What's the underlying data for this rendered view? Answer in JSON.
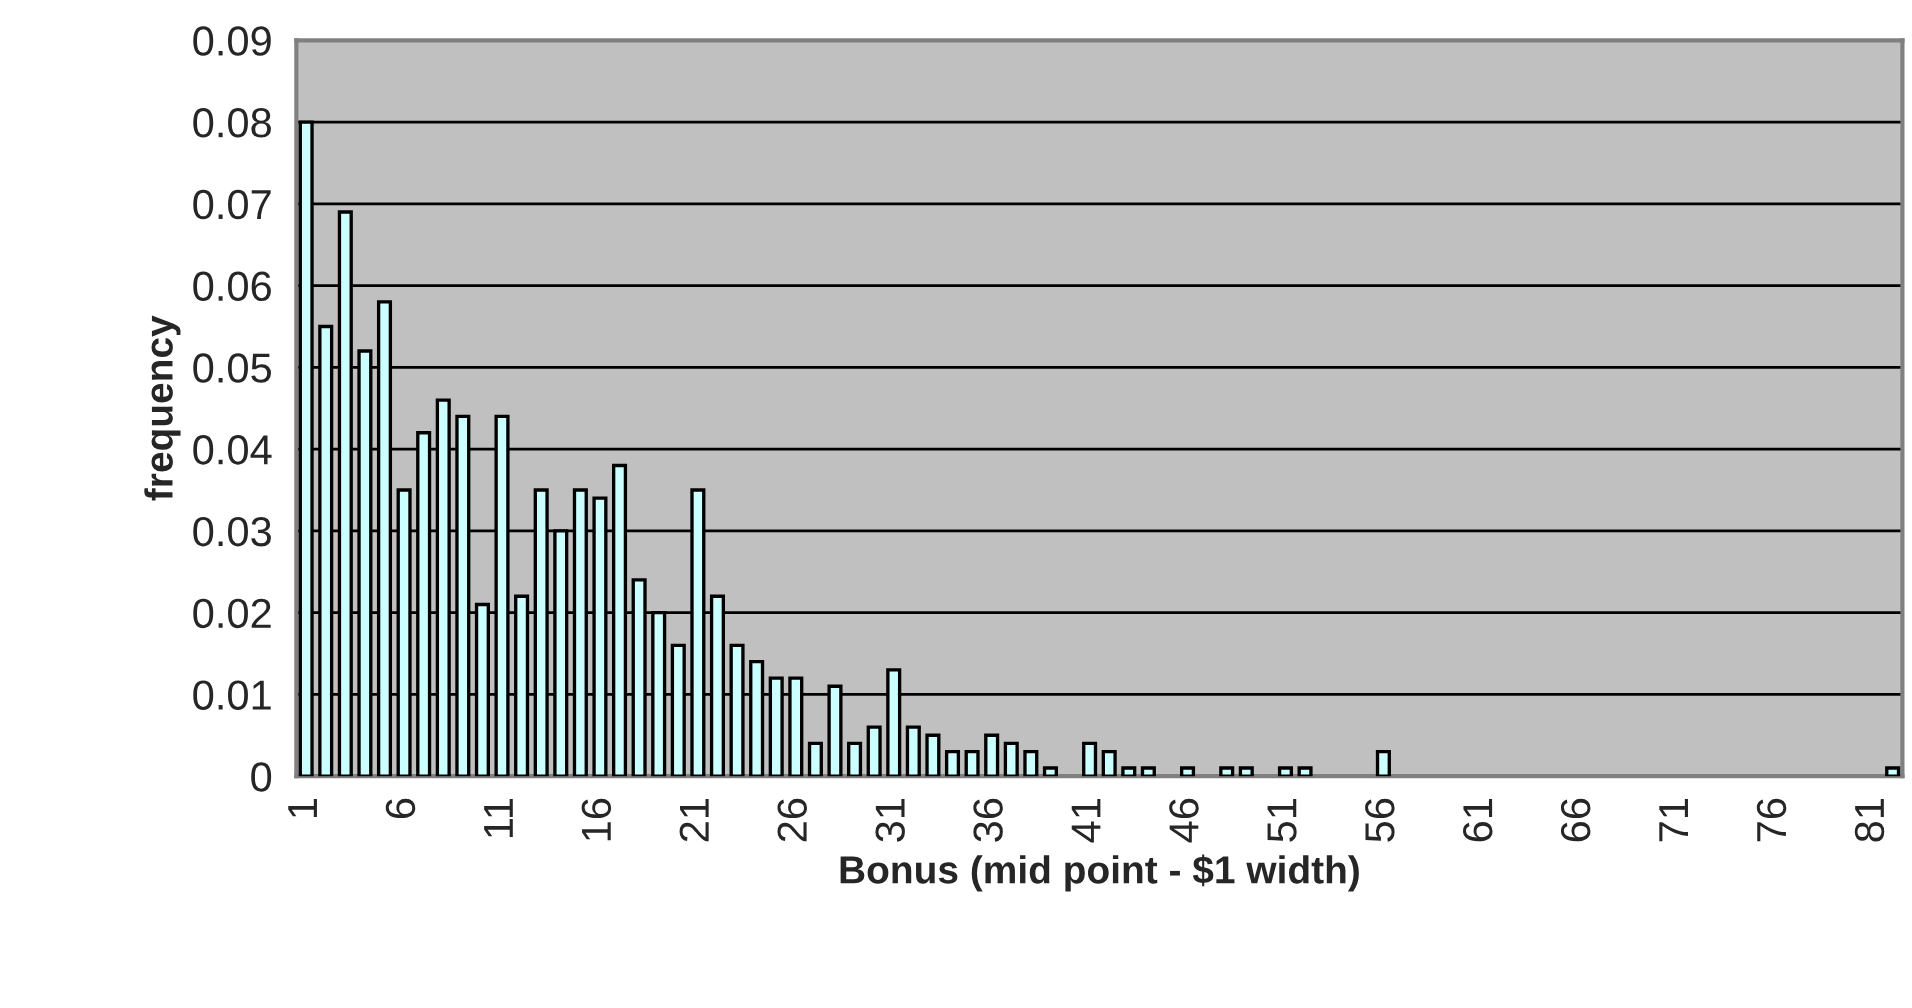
{
  "chart_data": {
    "type": "bar",
    "xlabel": "Bonus (mid point - $1 width)",
    "ylabel": "frequency",
    "categories": [
      "1",
      null,
      null,
      null,
      null,
      "6",
      null,
      null,
      null,
      null,
      "11",
      null,
      null,
      null,
      null,
      "16",
      null,
      null,
      null,
      null,
      "21",
      null,
      null,
      null,
      null,
      "26",
      null,
      null,
      null,
      null,
      "31",
      null,
      null,
      null,
      null,
      "36",
      null,
      null,
      null,
      null,
      "41",
      null,
      null,
      null,
      null,
      "46",
      null,
      null,
      null,
      null,
      "51",
      null,
      null,
      null,
      null,
      "56",
      null,
      null,
      null,
      null,
      "61",
      null,
      null,
      null,
      null,
      "66",
      null,
      null,
      null,
      null,
      "71",
      null,
      null,
      null,
      null,
      "76",
      null,
      null,
      null,
      null,
      "81",
      null
    ],
    "values": [
      0.08,
      0.055,
      0.069,
      0.052,
      0.058,
      0.035,
      0.042,
      0.046,
      0.044,
      0.021,
      0.044,
      0.022,
      0.035,
      0.03,
      0.035,
      0.034,
      0.038,
      0.024,
      0.02,
      0.016,
      0.035,
      0.022,
      0.016,
      0.014,
      0.012,
      0.012,
      0.004,
      0.011,
      0.004,
      0.006,
      0.013,
      0.006,
      0.005,
      0.003,
      0.003,
      0.005,
      0.004,
      0.003,
      0.001,
      0,
      0.004,
      0.003,
      0.001,
      0.001,
      0,
      0.001,
      0,
      0.001,
      0.001,
      0,
      0.001,
      0.001,
      0,
      0,
      0,
      0.003,
      0,
      0,
      0,
      0,
      0,
      0,
      0,
      0,
      0,
      0,
      0,
      0,
      0,
      0,
      0,
      0,
      0,
      0,
      0,
      0,
      0,
      0,
      0,
      0,
      0,
      0.001
    ],
    "color": "#ccffff",
    "ylim": [
      0,
      0.09
    ],
    "yticks": [
      0,
      0.01,
      0.02,
      0.03,
      0.04,
      0.05,
      0.06,
      0.07,
      0.08,
      0.09
    ],
    "grid": "y",
    "legend": false
  }
}
